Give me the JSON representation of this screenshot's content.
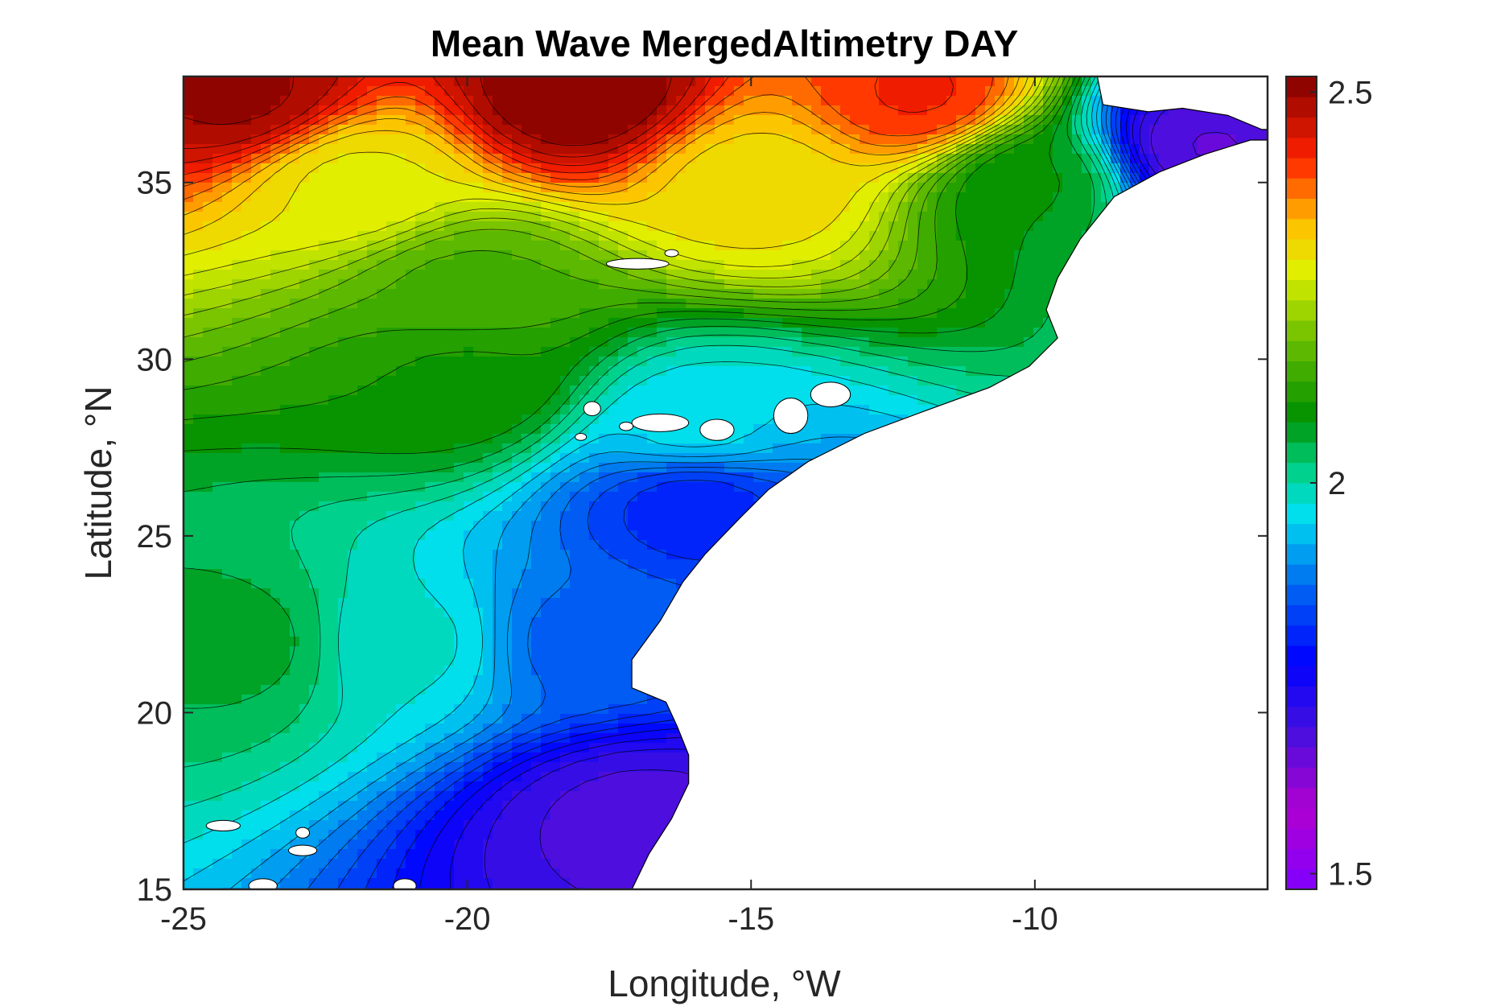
{
  "chart_data": {
    "type": "heatmap",
    "title": "Mean Wave MergedAltimetry DAY",
    "xlabel": "Longitude, °W",
    "ylabel": "Latitude, °N",
    "xlim": [
      -25,
      -5.9
    ],
    "ylim": [
      15,
      38
    ],
    "x_ticks": [
      "-25",
      "-20",
      "-15",
      "-10"
    ],
    "y_ticks": [
      "15",
      "20",
      "25",
      "30",
      "35"
    ],
    "colorbar": {
      "range": [
        1.48,
        2.52
      ],
      "ticks": [
        "1.5",
        "2",
        "2.5"
      ],
      "levels": 40,
      "colormap": "rainbow"
    },
    "grid": false,
    "colors": {
      "land": "#ffffff",
      "frame": "#262626",
      "contour_line": "#000000"
    },
    "field": {
      "description_nodes": "mean wave height over ocean, decreasing toward coast",
      "values": [
        {
          "lon": -24,
          "lat": 37.5,
          "value": 2.5
        },
        {
          "lon": -18,
          "lat": 37.5,
          "value": 2.52
        },
        {
          "lon": -12,
          "lat": 37.5,
          "value": 2.42
        },
        {
          "lon": -22,
          "lat": 35,
          "value": 2.28
        },
        {
          "lon": -15,
          "lat": 35,
          "value": 2.3
        },
        {
          "lon": -10,
          "lat": 35,
          "value": 2.08
        },
        {
          "lon": -7,
          "lat": 36,
          "value": 1.66
        },
        {
          "lon": -20,
          "lat": 32,
          "value": 2.15
        },
        {
          "lon": -20,
          "lat": 29.5,
          "value": 2.1
        },
        {
          "lon": -16,
          "lat": 28,
          "value": 1.96
        },
        {
          "lon": -24,
          "lat": 22,
          "value": 2.06
        },
        {
          "lon": -21,
          "lat": 22,
          "value": 1.98
        },
        {
          "lon": -18,
          "lat": 22,
          "value": 1.86
        },
        {
          "lon": -16,
          "lat": 26,
          "value": 1.8
        },
        {
          "lon": -17,
          "lat": 17,
          "value": 1.68
        }
      ]
    }
  }
}
